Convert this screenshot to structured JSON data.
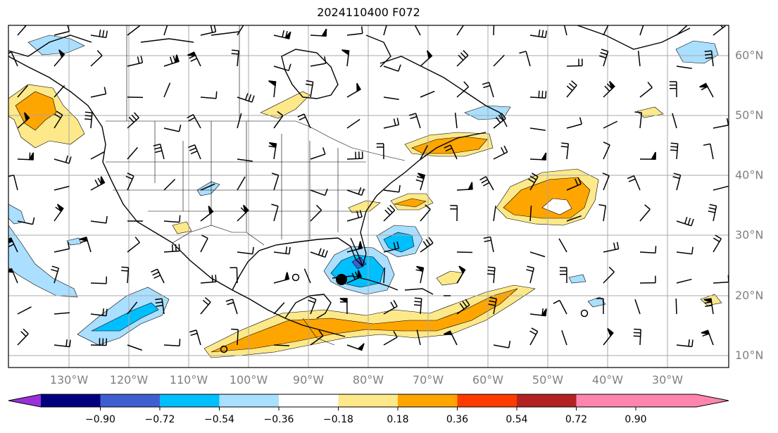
{
  "title": "2024110400 F072",
  "latitude_labels": [
    "60°N",
    "50°N",
    "40°N",
    "30°N",
    "20°N",
    "10°N"
  ],
  "longitude_labels": [
    "130°W",
    "120°W",
    "110°W",
    "100°W",
    "90°W",
    "80°W",
    "70°W",
    "60°W",
    "50°W",
    "40°W",
    "30°W"
  ],
  "colorbar": {
    "tick_labels": [
      "−0.90",
      "−0.72",
      "−0.54",
      "−0.36",
      "−0.18",
      "0.18",
      "0.36",
      "0.54",
      "0.72",
      "0.90"
    ],
    "colors": [
      "#9b30d8",
      "#00007f",
      "#3f5fd0",
      "#00bfff",
      "#aadfff",
      "#ffffff",
      "#fde98a",
      "#ffa500",
      "#ff3b00",
      "#b22222",
      "#ff85b0"
    ]
  },
  "palette": {
    "warm_light": "#fde98a",
    "warm_orange": "#ffa500",
    "cool_light": "#aadfff",
    "cool_cyan": "#00bfff",
    "cool_blue": "#3f5fd0"
  }
}
